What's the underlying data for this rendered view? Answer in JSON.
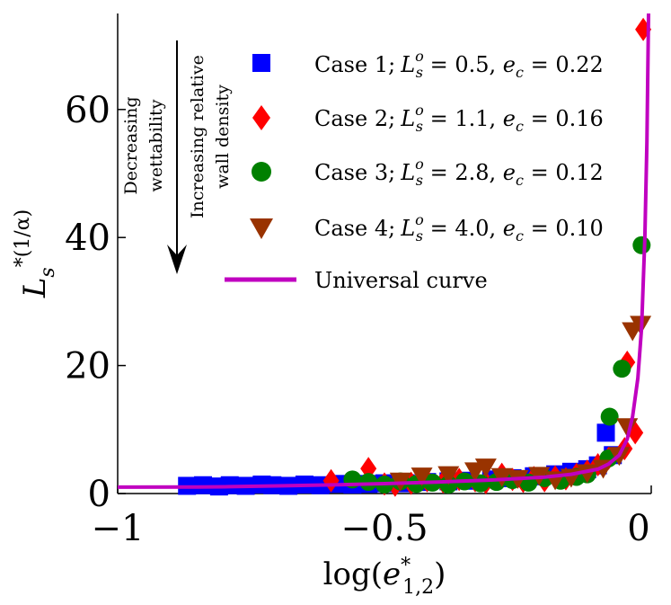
{
  "chart_data": {
    "type": "scatter",
    "title": "",
    "xlabel": "log(e*1,2)",
    "ylabel": "Ls*(1/α)",
    "xlim": [
      -1,
      0
    ],
    "ylim": [
      0,
      75
    ],
    "xticks": [
      -1,
      -0.5,
      0
    ],
    "xtick_labels": [
      "−1",
      "−0.5",
      "0"
    ],
    "yticks": [
      0,
      20,
      40,
      60
    ],
    "ytick_labels": [
      "0",
      "20",
      "40",
      "60"
    ],
    "grid": false,
    "legend_position": "top-right",
    "series": [
      {
        "name": "Case 1; Lso = 0.5, ec = 0.22",
        "marker": "square",
        "color": "#0000ff",
        "points": [
          [
            -0.87,
            1.2
          ],
          [
            -0.84,
            1.3
          ],
          [
            -0.81,
            1.1
          ],
          [
            -0.79,
            1.3
          ],
          [
            -0.76,
            1.2
          ],
          [
            -0.73,
            1.4
          ],
          [
            -0.71,
            1.3
          ],
          [
            -0.68,
            1.2
          ],
          [
            -0.65,
            1.4
          ],
          [
            -0.62,
            1.3
          ],
          [
            -0.59,
            1.5
          ],
          [
            -0.56,
            1.4
          ],
          [
            -0.53,
            1.5
          ],
          [
            -0.5,
            1.6
          ],
          [
            -0.46,
            1.6
          ],
          [
            -0.42,
            1.8
          ],
          [
            -0.38,
            1.9
          ],
          [
            -0.34,
            2.0
          ],
          [
            -0.3,
            2.2
          ],
          [
            -0.26,
            2.4
          ],
          [
            -0.22,
            2.7
          ],
          [
            -0.18,
            3.0
          ],
          [
            -0.15,
            3.4
          ],
          [
            -0.12,
            3.8
          ],
          [
            -0.1,
            4.4
          ],
          [
            -0.085,
            9.5
          ],
          [
            -0.072,
            6.0
          ]
        ]
      },
      {
        "name": "Case 2; Lso = 1.1, ec = 0.16",
        "marker": "diamond",
        "color": "#ff0000",
        "points": [
          [
            -0.6,
            2.0
          ],
          [
            -0.53,
            3.9
          ],
          [
            -0.5,
            1.5
          ],
          [
            -0.48,
            1.3
          ],
          [
            -0.45,
            1.6
          ],
          [
            -0.42,
            2.0
          ],
          [
            -0.39,
            1.8
          ],
          [
            -0.36,
            2.2
          ],
          [
            -0.33,
            2.0
          ],
          [
            -0.31,
            1.7
          ],
          [
            -0.28,
            3.0
          ],
          [
            -0.26,
            2.2
          ],
          [
            -0.24,
            1.9
          ],
          [
            -0.22,
            2.5
          ],
          [
            -0.2,
            2.0
          ],
          [
            -0.18,
            2.6
          ],
          [
            -0.16,
            2.3
          ],
          [
            -0.14,
            3.0
          ],
          [
            -0.12,
            3.5
          ],
          [
            -0.1,
            4.5
          ],
          [
            -0.08,
            5.5
          ],
          [
            -0.05,
            7.0
          ],
          [
            -0.03,
            9.5
          ],
          [
            -0.045,
            20.5
          ],
          [
            -0.015,
            72.5
          ]
        ]
      },
      {
        "name": "Case 3; Lso = 2.8, ec = 0.12",
        "marker": "circle",
        "color": "#008000",
        "points": [
          [
            -0.56,
            2.2
          ],
          [
            -0.53,
            1.8
          ],
          [
            -0.5,
            1.4
          ],
          [
            -0.47,
            1.9
          ],
          [
            -0.44,
            1.5
          ],
          [
            -0.41,
            1.7
          ],
          [
            -0.38,
            1.4
          ],
          [
            -0.35,
            1.9
          ],
          [
            -0.32,
            1.6
          ],
          [
            -0.29,
            1.8
          ],
          [
            -0.26,
            2.1
          ],
          [
            -0.23,
            1.7
          ],
          [
            -0.2,
            2.4
          ],
          [
            -0.17,
            2.0
          ],
          [
            -0.14,
            2.6
          ],
          [
            -0.12,
            3.0
          ],
          [
            -0.08,
            5.5
          ],
          [
            -0.078,
            12.0
          ],
          [
            -0.055,
            19.5
          ],
          [
            -0.018,
            38.8
          ]
        ]
      },
      {
        "name": "Case 4; Lso = 4.0, ec = 0.10",
        "marker": "triangle-down",
        "color": "#993300",
        "points": [
          [
            -0.47,
            2.0
          ],
          [
            -0.43,
            2.8
          ],
          [
            -0.38,
            3.0
          ],
          [
            -0.33,
            3.6
          ],
          [
            -0.31,
            4.2
          ],
          [
            -0.28,
            2.7
          ],
          [
            -0.25,
            2.4
          ],
          [
            -0.21,
            2.9
          ],
          [
            -0.18,
            2.2
          ],
          [
            -0.15,
            2.6
          ],
          [
            -0.12,
            3.3
          ],
          [
            -0.09,
            4.0
          ],
          [
            -0.06,
            6.0
          ],
          [
            -0.045,
            10.5
          ],
          [
            -0.035,
            25.5
          ],
          [
            -0.02,
            26.5
          ]
        ]
      }
    ],
    "curve": {
      "name": "Universal curve",
      "color": "#c000c0",
      "points": [
        [
          -1.0,
          1.0
        ],
        [
          -0.85,
          1.02
        ],
        [
          -0.8,
          1.05
        ],
        [
          -0.7,
          1.2
        ],
        [
          -0.6,
          1.35
        ],
        [
          -0.5,
          1.55
        ],
        [
          -0.4,
          1.8
        ],
        [
          -0.3,
          2.1
        ],
        [
          -0.2,
          2.55
        ],
        [
          -0.15,
          3.0
        ],
        [
          -0.1,
          3.8
        ],
        [
          -0.08,
          4.6
        ],
        [
          -0.06,
          6.0
        ],
        [
          -0.045,
          8.5
        ],
        [
          -0.035,
          12.0
        ],
        [
          -0.025,
          18.0
        ],
        [
          -0.018,
          26.0
        ],
        [
          -0.012,
          40.0
        ],
        [
          -0.008,
          55.0
        ],
        [
          -0.005,
          75.0
        ]
      ]
    },
    "annotations": [
      {
        "id": "decreasing",
        "lines": [
          "Decreasing",
          "wettability"
        ]
      },
      {
        "id": "increasing",
        "lines": [
          "Increasing relative",
          "wall density"
        ]
      }
    ]
  },
  "legend": {
    "case1": {
      "prefix": "Case 1;",
      "L": "L",
      "sup": "o",
      "sub": "s",
      "val": " = 0.5, ",
      "e": "e",
      "esub": "c",
      "eval": " = 0.22"
    },
    "case2": {
      "prefix": "Case 2;",
      "L": "L",
      "sup": "o",
      "sub": "s",
      "val": " = 1.1, ",
      "e": "e",
      "esub": "c",
      "eval": " = 0.16"
    },
    "case3": {
      "prefix": "Case 3;",
      "L": "L",
      "sup": "o",
      "sub": "s",
      "val": " = 2.8, ",
      "e": "e",
      "esub": "c",
      "eval": " = 0.12"
    },
    "case4": {
      "prefix": "Case 4;",
      "L": "L",
      "sup": "o",
      "sub": "s",
      "val": " = 4.0, ",
      "e": "e",
      "esub": "c",
      "eval": " = 0.10"
    },
    "curve": "Universal curve"
  },
  "axes": {
    "ylabel": {
      "L": "L",
      "sub": "s",
      "sup": "*(1/α)"
    },
    "xlabel": {
      "fn": "log(",
      "e": "e",
      "sup": "*",
      "sub": "1,2",
      "close": ")"
    }
  }
}
